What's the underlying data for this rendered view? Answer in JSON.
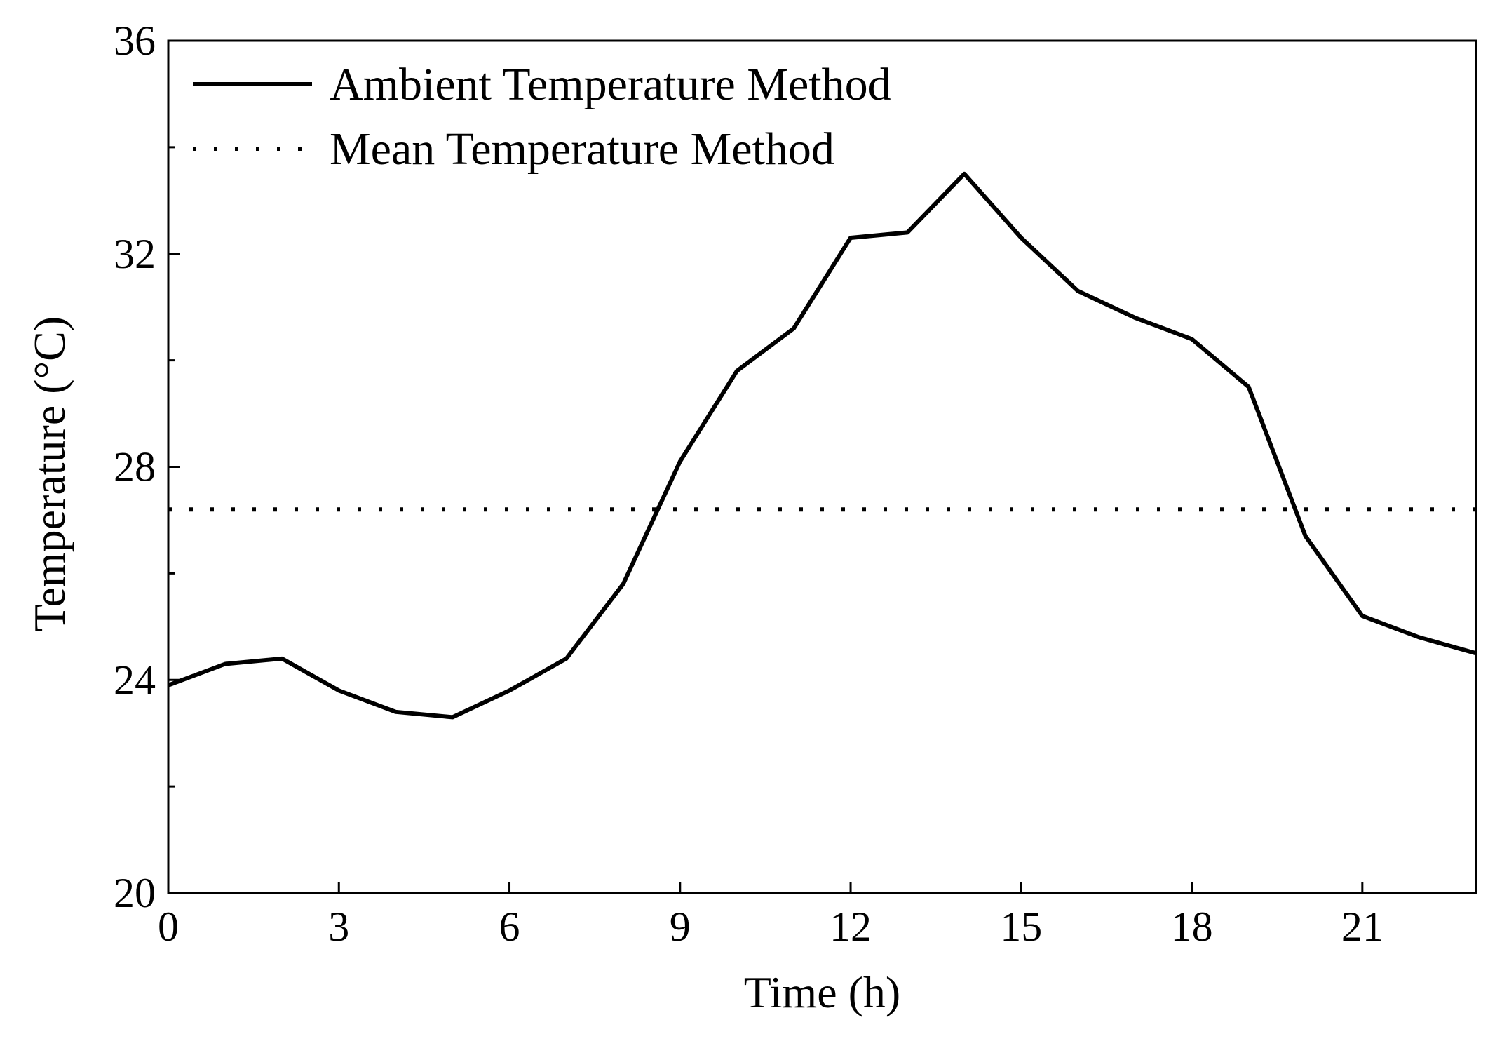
{
  "chart_data": {
    "type": "line",
    "title": "",
    "xlabel": "Time (h)",
    "ylabel": "Temperature (°C)",
    "xlim": [
      0,
      23
    ],
    "ylim": [
      20,
      36
    ],
    "xticks": [
      0,
      3,
      6,
      9,
      12,
      15,
      18,
      21
    ],
    "xtick_labels": [
      "0",
      "3",
      "6",
      "9",
      "12",
      "15",
      "18",
      "21"
    ],
    "yticks": [
      20,
      24,
      28,
      32,
      36
    ],
    "ytick_labels": [
      "20",
      "24",
      "28",
      "32",
      "36"
    ],
    "y_minor_step": 2,
    "grid": false,
    "legend_position": "top-left",
    "series": [
      {
        "name": "Ambient Temperature Method",
        "style": "solid",
        "color": "#000000",
        "x": [
          0,
          1,
          2,
          3,
          4,
          5,
          6,
          7,
          8,
          9,
          10,
          11,
          12,
          13,
          14,
          15,
          16,
          17,
          18,
          19,
          20,
          21,
          22,
          23
        ],
        "y": [
          23.9,
          24.3,
          24.4,
          23.8,
          23.4,
          23.3,
          23.8,
          24.4,
          25.8,
          28.1,
          29.8,
          30.6,
          32.3,
          32.4,
          33.5,
          32.3,
          31.3,
          30.8,
          30.4,
          29.5,
          26.7,
          25.2,
          24.8,
          24.5
        ]
      },
      {
        "name": "Mean Temperature Method",
        "style": "dotted",
        "color": "#000000",
        "x": [
          0,
          23
        ],
        "y": [
          27.2,
          27.2
        ]
      }
    ]
  }
}
